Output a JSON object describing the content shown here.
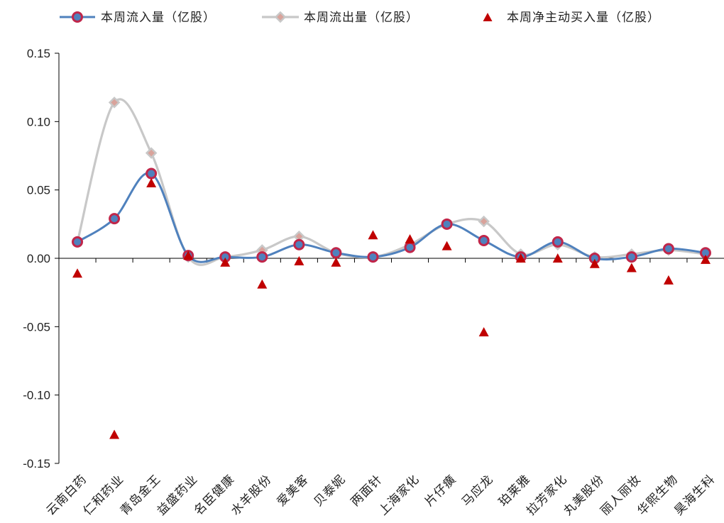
{
  "chart_data": {
    "type": "line",
    "categories": [
      "云南白药",
      "仁和药业",
      "青岛金王",
      "益盛药业",
      "名臣健康",
      "水羊股份",
      "爱美客",
      "贝泰妮",
      "两面针",
      "上海家化",
      "片仔癀",
      "马应龙",
      "珀莱雅",
      "拉芳家化",
      "丸美股份",
      "丽人丽妆",
      "华熙生物",
      "昊海生科"
    ],
    "series": [
      {
        "name": "本周流入量（亿股）",
        "type": "line",
        "color": "#4f81bd",
        "marker_color": "#c0264a",
        "values": [
          0.012,
          0.029,
          0.062,
          0.002,
          0.001,
          0.001,
          0.01,
          0.004,
          0.001,
          0.008,
          0.025,
          0.013,
          0.001,
          0.012,
          0.0,
          0.001,
          0.007,
          0.004
        ]
      },
      {
        "name": "本周流出量（亿股）",
        "type": "line",
        "color": "#c8c8c8",
        "marker_color": "#d9a39b",
        "values": [
          0.012,
          0.114,
          0.077,
          0.001,
          0.001,
          0.006,
          0.016,
          0.004,
          0.001,
          0.01,
          0.025,
          0.027,
          0.003,
          0.01,
          0.001,
          0.003,
          0.006,
          0.003
        ]
      },
      {
        "name": "本周净主动买入量（亿股）",
        "type": "scatter",
        "color": "#c00000",
        "values": [
          -0.011,
          -0.129,
          0.055,
          0.002,
          -0.003,
          -0.019,
          -0.002,
          -0.003,
          0.017,
          0.014,
          0.009,
          -0.054,
          0.0,
          0.0,
          -0.004,
          -0.007,
          -0.016,
          -0.001
        ]
      }
    ],
    "ylim": [
      -0.15,
      0.15
    ],
    "yticks": [
      "0.15",
      "0.10",
      "0.05",
      "0.00",
      "-0.05",
      "-0.10",
      "-0.15"
    ],
    "ytick_values": [
      0.15,
      0.1,
      0.05,
      0.0,
      -0.05,
      -0.1,
      -0.15
    ],
    "legend_position": "top",
    "grid": false
  }
}
